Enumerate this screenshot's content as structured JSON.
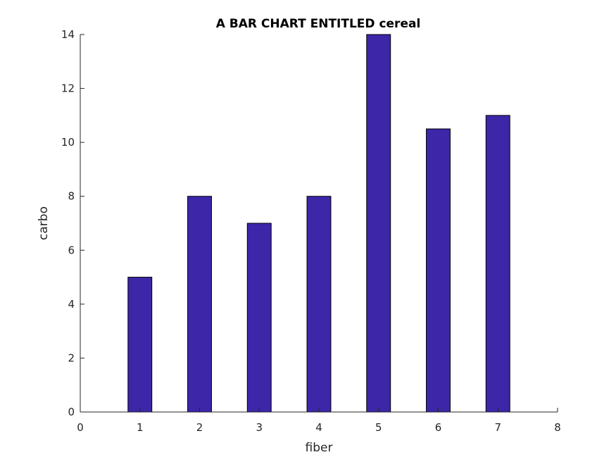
{
  "chart_data": {
    "type": "bar",
    "title": "A BAR CHART ENTITLED cereal",
    "xlabel": "fiber",
    "ylabel": "carbo",
    "x": [
      1,
      2,
      3,
      4,
      5,
      6,
      7
    ],
    "values": [
      5,
      8,
      7,
      8,
      14,
      10.5,
      11
    ],
    "xlim": [
      0,
      8
    ],
    "ylim": [
      0,
      14
    ],
    "xticks": [
      "0",
      "1",
      "2",
      "3",
      "4",
      "5",
      "6",
      "7",
      "8"
    ],
    "yticks": [
      "0",
      "2",
      "4",
      "6",
      "8",
      "10",
      "12",
      "14"
    ],
    "grid": false,
    "bar_color": "#3d26a8"
  }
}
